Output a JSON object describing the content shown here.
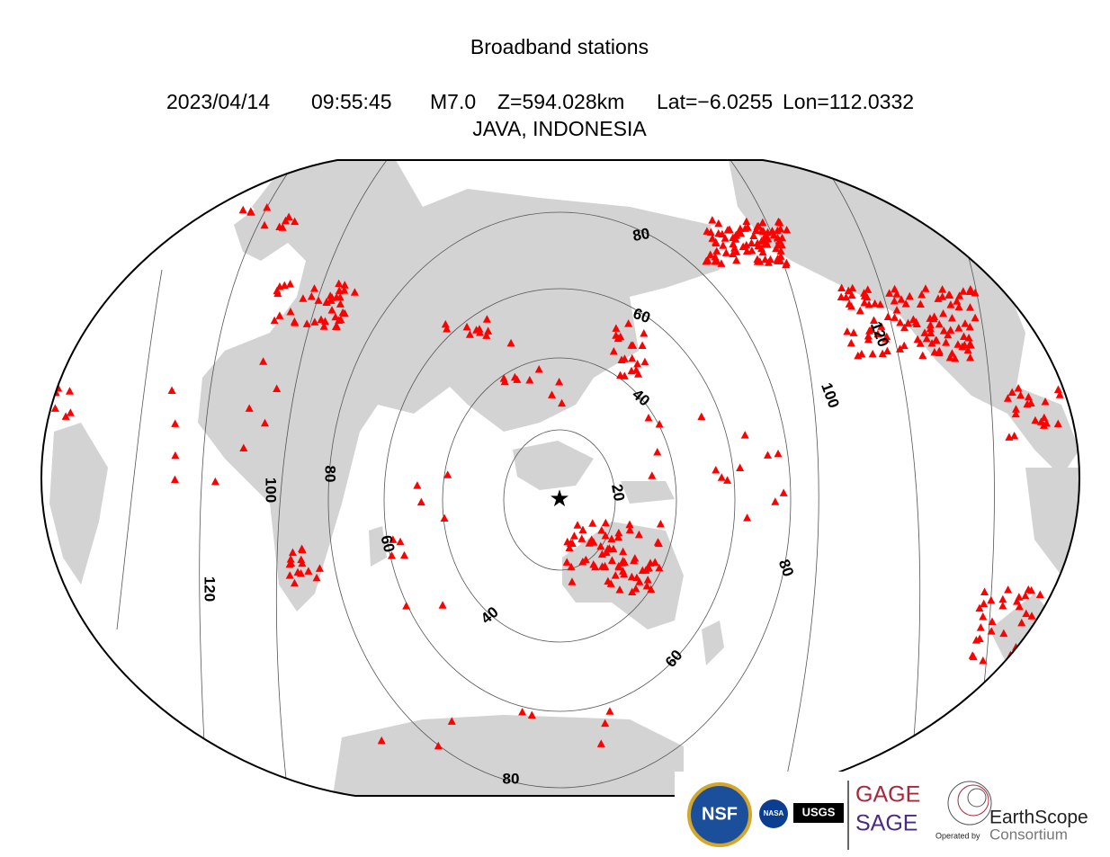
{
  "title": "Broadband stations",
  "event": {
    "date": "2023/04/14",
    "time": "09:55:45",
    "magnitude": "M7.0",
    "depth": "Z=594.028km",
    "lat": "Lat=−6.0255",
    "lon": "Lon=112.0332",
    "region": "JAVA, INDONESIA"
  },
  "contour_labels": [
    "80",
    "60",
    "40",
    "20",
    "100",
    "120",
    "100",
    "80",
    "60",
    "40",
    "60",
    "80",
    "120",
    "80"
  ],
  "logos": {
    "nsf": "NSF",
    "nasa": "NASA",
    "usgs": "USGS",
    "gage": "GAGE",
    "sage": "SAGE",
    "operated_by": "Operated by",
    "earthscope": "EarthScope",
    "consortium": "Consortium"
  }
}
